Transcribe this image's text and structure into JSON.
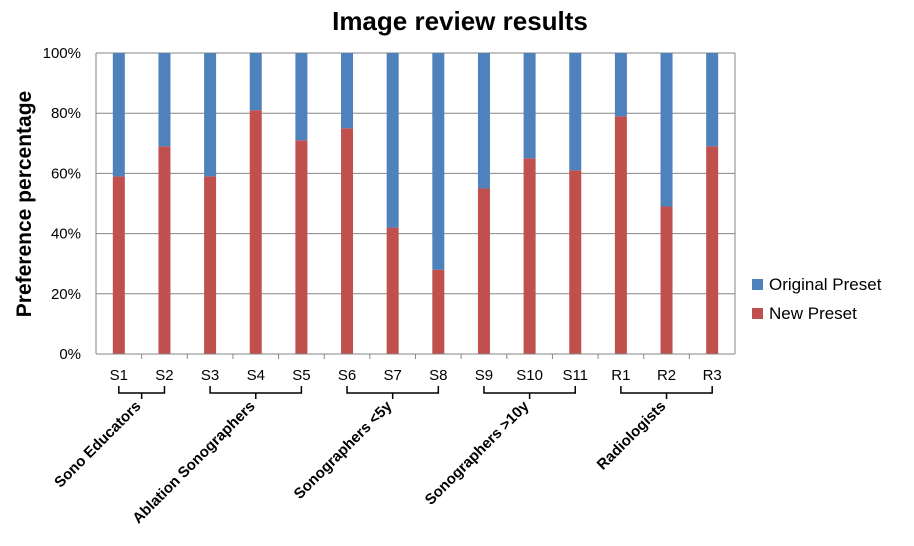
{
  "chart_data": {
    "type": "bar",
    "stacked": true,
    "title": "Image review results",
    "xlabel": "",
    "ylabel": "Preference percentage",
    "ylim": [
      0,
      100
    ],
    "yticks": [
      "0%",
      "20%",
      "40%",
      "60%",
      "80%",
      "100%"
    ],
    "grid": true,
    "legend_position": "right",
    "categories": [
      "S1",
      "S2",
      "S3",
      "S4",
      "S5",
      "S6",
      "S7",
      "S8",
      "S9",
      "S10",
      "S11",
      "R1",
      "R2",
      "R3"
    ],
    "series": [
      {
        "name": "Original Preset",
        "color": "#4F81BD",
        "values": [
          41,
          31,
          41,
          19,
          29,
          25,
          58,
          72,
          45,
          35,
          39,
          21,
          51,
          31
        ]
      },
      {
        "name": "New Preset",
        "color": "#C0504D",
        "values": [
          59,
          69,
          59,
          81,
          71,
          75,
          42,
          28,
          55,
          65,
          61,
          79,
          49,
          69
        ]
      }
    ],
    "groups": [
      {
        "label": "Sono Educators",
        "start": 0,
        "end": 1
      },
      {
        "label": "Ablation  Sonographers",
        "start": 2,
        "end": 4
      },
      {
        "label": "Sonographers <5y",
        "start": 5,
        "end": 7
      },
      {
        "label": "Sonographers >10y",
        "start": 8,
        "end": 10
      },
      {
        "label": "Radiologists",
        "start": 11,
        "end": 13
      }
    ]
  }
}
